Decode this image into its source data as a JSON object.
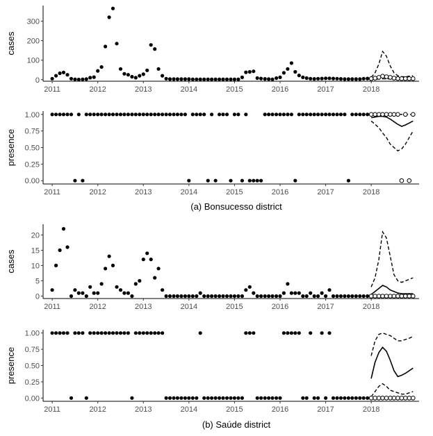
{
  "figure": {
    "caption_a": "(a) Bonsucesso district",
    "caption_b": "(b) Saúde district"
  },
  "chart_data": [
    {
      "id": "bonsucesso-cases",
      "type": "scatter",
      "ylabel": "cases",
      "xlim": [
        2010.8,
        2019.05
      ],
      "ylim": [
        -8,
        380
      ],
      "yticks": [
        0,
        100,
        200,
        300
      ],
      "ytick_labels": [
        "0",
        "100",
        "200",
        "300"
      ],
      "xticks": [
        2011,
        2012,
        2013,
        2014,
        2015,
        2016,
        2017,
        2018
      ],
      "xtick_labels": [
        "2011",
        "2012",
        "2013",
        "2014",
        "2015",
        "2016",
        "2017",
        "2018"
      ],
      "observed": {
        "x": [
          2011.0,
          2011.083,
          2011.167,
          2011.25,
          2011.333,
          2011.417,
          2011.5,
          2011.583,
          2011.667,
          2011.75,
          2011.833,
          2011.917,
          2012.0,
          2012.083,
          2012.167,
          2012.25,
          2012.333,
          2012.417,
          2012.5,
          2012.583,
          2012.667,
          2012.75,
          2012.833,
          2012.917,
          2013.0,
          2013.083,
          2013.167,
          2013.25,
          2013.333,
          2013.417,
          2013.5,
          2013.583,
          2013.667,
          2013.75,
          2013.833,
          2013.917,
          2014.0,
          2014.083,
          2014.167,
          2014.25,
          2014.333,
          2014.417,
          2014.5,
          2014.583,
          2014.667,
          2014.75,
          2014.833,
          2014.917,
          2015.0,
          2015.083,
          2015.167,
          2015.25,
          2015.333,
          2015.417,
          2015.5,
          2015.583,
          2015.667,
          2015.75,
          2015.833,
          2015.917,
          2016.0,
          2016.083,
          2016.167,
          2016.25,
          2016.333,
          2016.417,
          2016.5,
          2016.583,
          2016.667,
          2016.75,
          2016.833,
          2016.917,
          2017.0,
          2017.083,
          2017.167,
          2017.25,
          2017.333,
          2017.417,
          2017.5,
          2017.583,
          2017.667,
          2017.75,
          2017.833,
          2017.917
        ],
        "y": [
          5,
          20,
          33,
          37,
          25,
          5,
          2,
          1,
          2,
          3,
          10,
          13,
          45,
          65,
          170,
          320,
          365,
          185,
          55,
          30,
          25,
          15,
          10,
          20,
          28,
          48,
          178,
          157,
          55,
          20,
          5,
          3,
          3,
          3,
          3,
          3,
          3,
          2,
          2,
          2,
          2,
          2,
          2,
          2,
          2,
          2,
          2,
          2,
          2,
          2,
          12,
          38,
          40,
          43,
          8,
          6,
          4,
          3,
          2,
          8,
          12,
          35,
          55,
          85,
          40,
          22,
          12,
          8,
          5,
          4,
          5,
          6,
          7,
          7,
          6,
          5,
          4,
          3,
          3,
          3,
          3,
          3,
          5,
          6
        ]
      },
      "predicted": {
        "x": [
          2018.0,
          2018.083,
          2018.167,
          2018.25,
          2018.333,
          2018.417,
          2018.5,
          2018.583,
          2018.667,
          2018.75,
          2018.833,
          2018.917
        ],
        "y": [
          5,
          8,
          12,
          18,
          15,
          12,
          8,
          6,
          5,
          5,
          5,
          5
        ],
        "median": [
          5,
          8,
          12,
          15,
          14,
          12,
          10,
          8,
          7,
          6,
          6,
          6
        ],
        "upper": [
          12,
          35,
          80,
          145,
          120,
          70,
          35,
          20,
          15,
          15,
          18,
          20
        ],
        "lower": [
          2,
          2,
          3,
          4,
          4,
          3,
          3,
          2,
          2,
          2,
          2,
          2
        ]
      }
    },
    {
      "id": "bonsucesso-presence",
      "type": "scatter",
      "ylabel": "presence",
      "xlim": [
        2010.8,
        2019.05
      ],
      "ylim": [
        -0.05,
        1.05
      ],
      "yticks": [
        0,
        0.25,
        0.5,
        0.75,
        1
      ],
      "ytick_labels": [
        "0.00",
        "0.25",
        "0.50",
        "0.75",
        "1.00"
      ],
      "xticks": [
        2011,
        2012,
        2013,
        2014,
        2015,
        2016,
        2017,
        2018
      ],
      "xtick_labels": [
        "2011",
        "2012",
        "2013",
        "2014",
        "2015",
        "2016",
        "2017",
        "2018"
      ],
      "observed": {
        "x": [
          2011.0,
          2011.083,
          2011.167,
          2011.25,
          2011.333,
          2011.417,
          2011.5,
          2011.583,
          2011.667,
          2011.75,
          2011.833,
          2011.917,
          2012.0,
          2012.083,
          2012.167,
          2012.25,
          2012.333,
          2012.417,
          2012.5,
          2012.583,
          2012.667,
          2012.75,
          2012.833,
          2012.917,
          2013.0,
          2013.083,
          2013.167,
          2013.25,
          2013.333,
          2013.417,
          2013.5,
          2013.583,
          2013.667,
          2013.75,
          2013.833,
          2013.917,
          2014.0,
          2014.083,
          2014.167,
          2014.25,
          2014.333,
          2014.417,
          2014.5,
          2014.583,
          2014.667,
          2014.75,
          2014.833,
          2014.917,
          2015.0,
          2015.083,
          2015.167,
          2015.25,
          2015.333,
          2015.417,
          2015.5,
          2015.583,
          2015.667,
          2015.75,
          2015.833,
          2015.917,
          2016.0,
          2016.083,
          2016.167,
          2016.25,
          2016.333,
          2016.417,
          2016.5,
          2016.583,
          2016.667,
          2016.75,
          2016.833,
          2016.917,
          2017.0,
          2017.083,
          2017.167,
          2017.25,
          2017.333,
          2017.417,
          2017.5,
          2017.583,
          2017.667,
          2017.75,
          2017.833,
          2017.917
        ],
        "y": [
          1,
          1,
          1,
          1,
          1,
          1,
          0,
          1,
          0,
          1,
          1,
          1,
          1,
          1,
          1,
          1,
          1,
          1,
          1,
          1,
          1,
          1,
          1,
          1,
          1,
          1,
          1,
          1,
          1,
          1,
          1,
          1,
          1,
          1,
          1,
          1,
          0,
          1,
          1,
          1,
          1,
          0,
          1,
          0,
          1,
          1,
          1,
          0,
          1,
          1,
          0,
          1,
          0,
          0,
          0,
          0,
          1,
          1,
          1,
          1,
          1,
          1,
          1,
          1,
          0,
          1,
          1,
          1,
          1,
          1,
          1,
          1,
          1,
          1,
          1,
          1,
          1,
          1,
          0,
          1,
          1,
          1,
          1,
          1
        ]
      },
      "predicted": {
        "x": [
          2018.0,
          2018.083,
          2018.167,
          2018.25,
          2018.333,
          2018.417,
          2018.5,
          2018.583,
          2018.667,
          2018.75,
          2018.833,
          2018.917
        ],
        "y": [
          1,
          1,
          1,
          1,
          1,
          1,
          1,
          1,
          0,
          1,
          0,
          1
        ],
        "median": [
          0.95,
          0.96,
          0.97,
          0.97,
          0.96,
          0.93,
          0.89,
          0.85,
          0.82,
          0.84,
          0.87,
          0.9
        ],
        "upper": [
          1,
          1,
          1,
          1,
          1,
          1,
          1,
          1,
          1,
          1,
          1,
          1
        ],
        "lower": [
          0.9,
          0.85,
          0.8,
          0.72,
          0.65,
          0.55,
          0.5,
          0.45,
          0.48,
          0.55,
          0.65,
          0.75
        ]
      }
    },
    {
      "id": "saude-cases",
      "type": "scatter",
      "ylabel": "cases",
      "xlim": [
        2010.8,
        2019.05
      ],
      "ylim": [
        -0.8,
        23.5
      ],
      "yticks": [
        0,
        5,
        10,
        15,
        20
      ],
      "ytick_labels": [
        "0",
        "5",
        "10",
        "15",
        "20"
      ],
      "xticks": [
        2011,
        2012,
        2013,
        2014,
        2015,
        2016,
        2017,
        2018
      ],
      "xtick_labels": [
        "2011",
        "2012",
        "2013",
        "2014",
        "2015",
        "2016",
        "2017",
        "2018"
      ],
      "observed": {
        "x": [
          2011.0,
          2011.083,
          2011.167,
          2011.25,
          2011.333,
          2011.417,
          2011.5,
          2011.583,
          2011.667,
          2011.75,
          2011.833,
          2011.917,
          2012.0,
          2012.083,
          2012.167,
          2012.25,
          2012.333,
          2012.417,
          2012.5,
          2012.583,
          2012.667,
          2012.75,
          2012.833,
          2012.917,
          2013.0,
          2013.083,
          2013.167,
          2013.25,
          2013.333,
          2013.417,
          2013.5,
          2013.583,
          2013.667,
          2013.75,
          2013.833,
          2013.917,
          2014.0,
          2014.083,
          2014.167,
          2014.25,
          2014.333,
          2014.417,
          2014.5,
          2014.583,
          2014.667,
          2014.75,
          2014.833,
          2014.917,
          2015.0,
          2015.083,
          2015.167,
          2015.25,
          2015.333,
          2015.417,
          2015.5,
          2015.583,
          2015.667,
          2015.75,
          2015.833,
          2015.917,
          2016.0,
          2016.083,
          2016.167,
          2016.25,
          2016.333,
          2016.417,
          2016.5,
          2016.583,
          2016.667,
          2016.75,
          2016.833,
          2016.917,
          2017.0,
          2017.083,
          2017.167,
          2017.25,
          2017.333,
          2017.417,
          2017.5,
          2017.583,
          2017.667,
          2017.75,
          2017.833,
          2017.917
        ],
        "y": [
          2,
          10,
          15,
          22,
          16,
          0,
          2,
          1,
          1,
          0,
          3,
          1,
          1,
          4,
          9,
          13,
          10,
          3,
          2,
          1,
          1,
          0,
          4,
          5,
          12,
          14,
          12,
          6,
          9,
          2,
          0,
          0,
          0,
          0,
          0,
          0,
          0,
          0,
          0,
          1,
          0,
          0,
          0,
          0,
          0,
          0,
          0,
          0,
          0,
          0,
          0,
          2,
          3,
          1,
          0,
          0,
          0,
          0,
          0,
          0,
          0,
          1,
          4,
          1,
          1,
          1,
          0,
          0,
          1,
          0,
          0,
          1,
          0,
          2,
          0,
          0,
          0,
          0,
          0,
          0,
          0,
          0,
          0,
          0
        ]
      },
      "predicted": {
        "x": [
          2018.0,
          2018.083,
          2018.167,
          2018.25,
          2018.333,
          2018.417,
          2018.5,
          2018.583,
          2018.667,
          2018.75,
          2018.833,
          2018.917
        ],
        "y": [
          0,
          0,
          0,
          0,
          0,
          0,
          0,
          0,
          0,
          0,
          0,
          0
        ],
        "median": [
          0.5,
          1.5,
          2.5,
          3.5,
          3,
          2,
          1.5,
          1,
          0.8,
          0.8,
          0.8,
          0.8
        ],
        "upper": [
          3,
          6,
          12,
          21,
          19,
          13,
          7,
          5,
          4.5,
          5,
          5.5,
          6
        ],
        "lower": [
          0,
          0,
          0,
          0,
          0,
          0,
          0,
          0,
          0,
          0,
          0,
          0
        ]
      }
    },
    {
      "id": "saude-presence",
      "type": "scatter",
      "ylabel": "presence",
      "xlim": [
        2010.8,
        2019.05
      ],
      "ylim": [
        -0.05,
        1.05
      ],
      "yticks": [
        0,
        0.25,
        0.5,
        0.75,
        1
      ],
      "ytick_labels": [
        "0.00",
        "0.25",
        "0.50",
        "0.75",
        "1.00"
      ],
      "xticks": [
        2011,
        2012,
        2013,
        2014,
        2015,
        2016,
        2017,
        2018
      ],
      "xtick_labels": [
        "2011",
        "2012",
        "2013",
        "2014",
        "2015",
        "2016",
        "2017",
        "2018"
      ],
      "observed": {
        "x": [
          2011.0,
          2011.083,
          2011.167,
          2011.25,
          2011.333,
          2011.417,
          2011.5,
          2011.583,
          2011.667,
          2011.75,
          2011.833,
          2011.917,
          2012.0,
          2012.083,
          2012.167,
          2012.25,
          2012.333,
          2012.417,
          2012.5,
          2012.583,
          2012.667,
          2012.75,
          2012.833,
          2012.917,
          2013.0,
          2013.083,
          2013.167,
          2013.25,
          2013.333,
          2013.417,
          2013.5,
          2013.583,
          2013.667,
          2013.75,
          2013.833,
          2013.917,
          2014.0,
          2014.083,
          2014.167,
          2014.25,
          2014.333,
          2014.417,
          2014.5,
          2014.583,
          2014.667,
          2014.75,
          2014.833,
          2014.917,
          2015.0,
          2015.083,
          2015.167,
          2015.25,
          2015.333,
          2015.417,
          2015.5,
          2015.583,
          2015.667,
          2015.75,
          2015.833,
          2015.917,
          2016.0,
          2016.083,
          2016.167,
          2016.25,
          2016.333,
          2016.417,
          2016.5,
          2016.583,
          2016.667,
          2016.75,
          2016.833,
          2016.917,
          2017.0,
          2017.083,
          2017.167,
          2017.25,
          2017.333,
          2017.417,
          2017.5,
          2017.583,
          2017.667,
          2017.75,
          2017.833,
          2017.917
        ],
        "y": [
          1,
          1,
          1,
          1,
          1,
          0,
          1,
          1,
          1,
          0,
          1,
          1,
          1,
          1,
          1,
          1,
          1,
          1,
          1,
          1,
          1,
          0,
          1,
          1,
          1,
          1,
          1,
          1,
          1,
          1,
          0,
          0,
          0,
          0,
          0,
          0,
          0,
          0,
          0,
          1,
          0,
          0,
          0,
          0,
          0,
          0,
          0,
          0,
          0,
          0,
          0,
          1,
          1,
          1,
          0,
          0,
          0,
          0,
          0,
          0,
          0,
          1,
          1,
          1,
          1,
          1,
          0,
          0,
          1,
          0,
          0,
          1,
          0,
          1,
          0,
          0,
          0,
          0,
          0,
          0,
          0,
          0,
          0,
          0
        ]
      },
      "predicted": {
        "x": [
          2018.0,
          2018.083,
          2018.167,
          2018.25,
          2018.333,
          2018.417,
          2018.5,
          2018.583,
          2018.667,
          2018.75,
          2018.833,
          2018.917
        ],
        "y": [
          0,
          0,
          0,
          0,
          0,
          0,
          0,
          0,
          0,
          0,
          0,
          0
        ],
        "median": [
          0.3,
          0.55,
          0.7,
          0.78,
          0.72,
          0.58,
          0.42,
          0.33,
          0.35,
          0.38,
          0.42,
          0.46
        ],
        "upper": [
          0.65,
          0.88,
          0.98,
          1,
          0.98,
          0.96,
          0.92,
          0.88,
          0.88,
          0.9,
          0.92,
          0.95
        ],
        "lower": [
          0.02,
          0.1,
          0.18,
          0.22,
          0.18,
          0.12,
          0.1,
          0.08,
          0.06,
          0.06,
          0.08,
          0.1
        ]
      }
    }
  ]
}
